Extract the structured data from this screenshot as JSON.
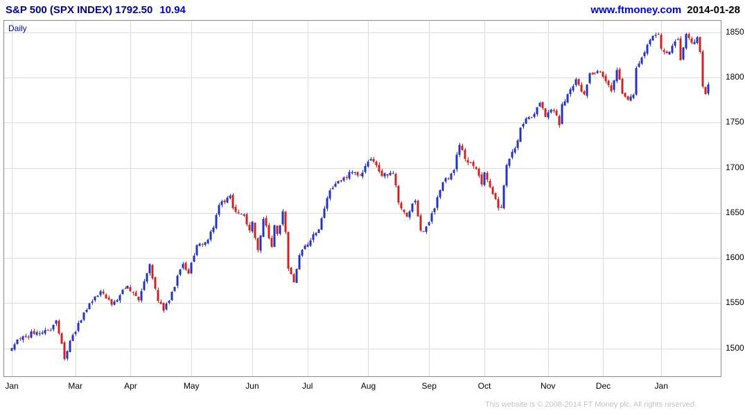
{
  "header": {
    "title": "S&P 500 (SPX INDEX) 1792.50",
    "change": "10.94",
    "site": "www.ftmoney.com",
    "date": "2014-01-28"
  },
  "chart_label": "Daily",
  "footer": "This website is © 2008-2014 FT Money plc. All rights reserved.",
  "chart_data": {
    "type": "candlestick",
    "title": "S&P 500 (SPX INDEX)",
    "interval": "Daily",
    "last_close": 1792.5,
    "change": 10.94,
    "grid": true,
    "ylim": [
      1469,
      1863
    ],
    "y_ticks": [
      1850,
      1800,
      1750,
      1700,
      1650,
      1600,
      1550,
      1500
    ],
    "x_ticks": [
      {
        "label": "Jan",
        "day": 0
      },
      {
        "label": "Mar",
        "day": 23
      },
      {
        "label": "Apr",
        "day": 43
      },
      {
        "label": "May",
        "day": 65
      },
      {
        "label": "Jun",
        "day": 87
      },
      {
        "label": "Jul",
        "day": 107
      },
      {
        "label": "Aug",
        "day": 129
      },
      {
        "label": "Sep",
        "day": 151
      },
      {
        "label": "Oct",
        "day": 171
      },
      {
        "label": "Nov",
        "day": 194
      },
      {
        "label": "Dec",
        "day": 214
      },
      {
        "label": "Jan",
        "day": 235
      }
    ],
    "days": 253,
    "colors": {
      "up": "#2433bb",
      "down": "#cc2222",
      "grid": "#dcdcdc",
      "border": "#8a8a8a"
    },
    "close_keypoints": [
      [
        0,
        1500.2
      ],
      [
        4,
        1513.2
      ],
      [
        9,
        1517.9
      ],
      [
        14,
        1519.8
      ],
      [
        16,
        1530.9
      ],
      [
        19,
        1488.0
      ],
      [
        20,
        1496.9
      ],
      [
        22,
        1514.7
      ],
      [
        23,
        1518.2
      ],
      [
        26,
        1539.8
      ],
      [
        32,
        1563.2
      ],
      [
        36,
        1548.3
      ],
      [
        42,
        1569.2
      ],
      [
        46,
        1553.3
      ],
      [
        50,
        1593.4
      ],
      [
        53,
        1552.4
      ],
      [
        55,
        1541.6
      ],
      [
        58,
        1562.5
      ],
      [
        62,
        1593.6
      ],
      [
        64,
        1582.7
      ],
      [
        67,
        1614.4
      ],
      [
        70,
        1617.5
      ],
      [
        73,
        1633.8
      ],
      [
        75,
        1658.8
      ],
      [
        79,
        1669.2
      ],
      [
        80,
        1655.4
      ],
      [
        82,
        1649.6
      ],
      [
        84,
        1648.4
      ],
      [
        86,
        1630.7
      ],
      [
        87,
        1640.4
      ],
      [
        89,
        1608.9
      ],
      [
        91,
        1643.4
      ],
      [
        94,
        1612.5
      ],
      [
        95,
        1636.4
      ],
      [
        96,
        1626.7
      ],
      [
        98,
        1651.8
      ],
      [
        99,
        1628.9
      ],
      [
        100,
        1588.2
      ],
      [
        102,
        1573.1
      ],
      [
        104,
        1603.3
      ],
      [
        107,
        1615.0
      ],
      [
        111,
        1631.9
      ],
      [
        115,
        1675.0
      ],
      [
        120,
        1689.4
      ],
      [
        122,
        1695.5
      ],
      [
        126,
        1691.7
      ],
      [
        129,
        1706.9
      ],
      [
        130,
        1709.7
      ],
      [
        134,
        1690.9
      ],
      [
        136,
        1691.4
      ],
      [
        138,
        1694.2
      ],
      [
        140,
        1661.3
      ],
      [
        143,
        1646.1
      ],
      [
        146,
        1663.5
      ],
      [
        148,
        1630.5
      ],
      [
        150,
        1635.0
      ],
      [
        151,
        1639.8
      ],
      [
        153,
        1655.1
      ],
      [
        156,
        1684.0
      ],
      [
        160,
        1697.6
      ],
      [
        162,
        1725.5
      ],
      [
        164,
        1709.9
      ],
      [
        168,
        1698.7
      ],
      [
        170,
        1681.6
      ],
      [
        171,
        1695.0
      ],
      [
        173,
        1678.7
      ],
      [
        176,
        1655.5
      ],
      [
        177,
        1656.4
      ],
      [
        179,
        1703.2
      ],
      [
        182,
        1721.5
      ],
      [
        184,
        1744.5
      ],
      [
        186,
        1754.7
      ],
      [
        189,
        1759.8
      ],
      [
        191,
        1772.0
      ],
      [
        193,
        1756.5
      ],
      [
        194,
        1761.6
      ],
      [
        196,
        1763.0
      ],
      [
        198,
        1747.2
      ],
      [
        199,
        1770.6
      ],
      [
        203,
        1790.6
      ],
      [
        204,
        1798.2
      ],
      [
        207,
        1781.4
      ],
      [
        209,
        1804.8
      ],
      [
        212,
        1807.2
      ],
      [
        214,
        1800.9
      ],
      [
        217,
        1785.0
      ],
      [
        219,
        1808.4
      ],
      [
        221,
        1782.2
      ],
      [
        223,
        1775.3
      ],
      [
        225,
        1781.0
      ],
      [
        226,
        1810.7
      ],
      [
        229,
        1828.0
      ],
      [
        231,
        1842.0
      ],
      [
        234,
        1848.4
      ],
      [
        235,
        1832.0
      ],
      [
        237,
        1826.8
      ],
      [
        241,
        1842.4
      ],
      [
        242,
        1819.2
      ],
      [
        244,
        1848.4
      ],
      [
        246,
        1838.7
      ],
      [
        248,
        1844.9
      ],
      [
        249,
        1828.5
      ],
      [
        250,
        1790.3
      ],
      [
        251,
        1781.6
      ],
      [
        252,
        1792.5
      ]
    ],
    "synth": {
      "seed": 20140128,
      "wiggle": 3.4,
      "gap": 1.6,
      "wick": 3.0
    }
  }
}
